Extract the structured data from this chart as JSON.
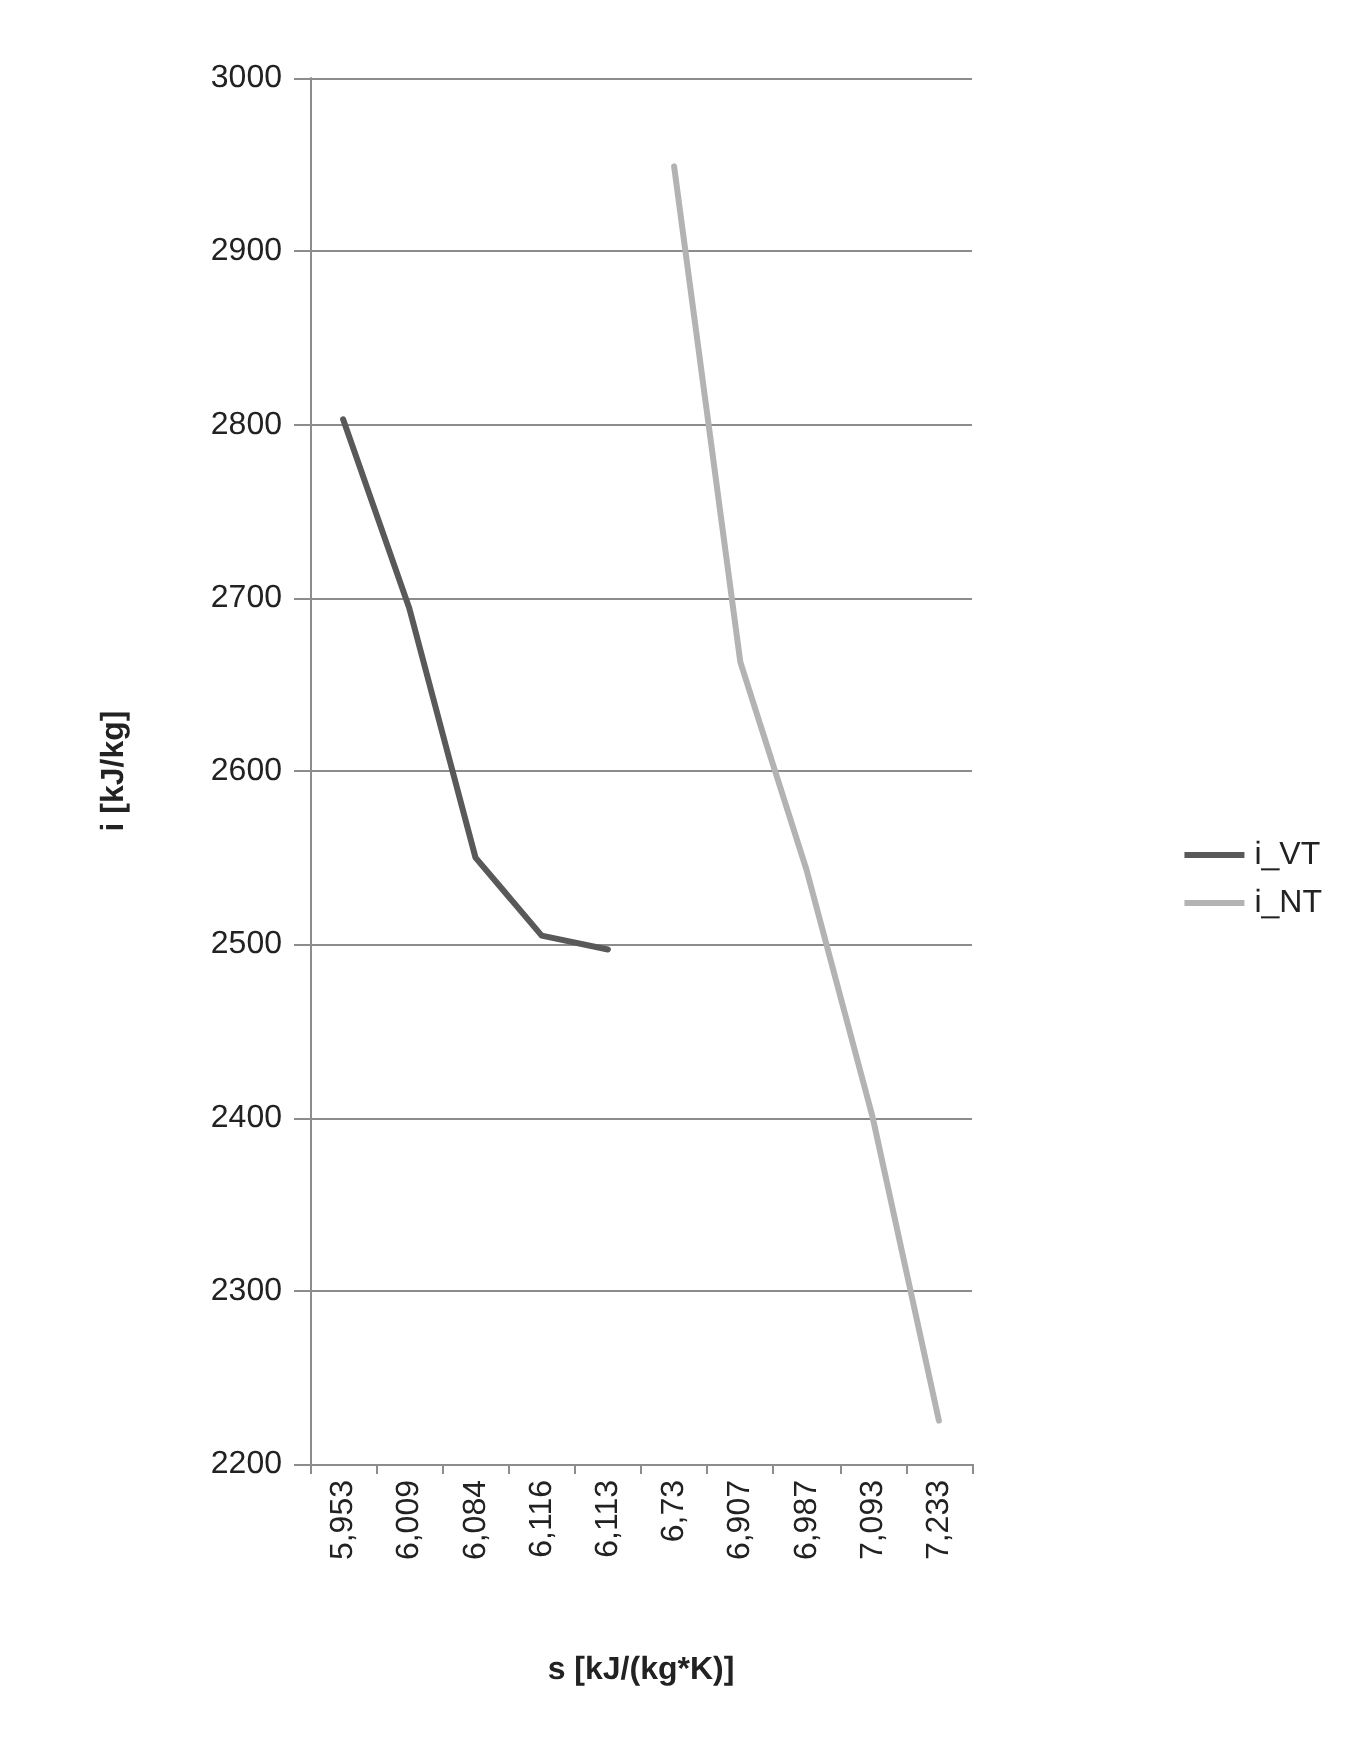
{
  "chart_data": {
    "type": "line",
    "xlabel": "s [kJ/(kg*K)]",
    "ylabel": "i [kJ/kg]",
    "categories": [
      "5,953",
      "6,009",
      "6,084",
      "6,116",
      "6,113",
      "6,73",
      "6,907",
      "6,987",
      "7,093",
      "7,233"
    ],
    "series": [
      {
        "name": "i_VT",
        "color": "#595959",
        "values": [
          2803,
          2694,
          2550,
          2505,
          2497,
          null,
          null,
          null,
          null,
          null
        ]
      },
      {
        "name": "i_NT",
        "color": "#b3b3b3",
        "values": [
          null,
          null,
          null,
          null,
          null,
          2949,
          2663,
          2543,
          2400,
          2225
        ]
      }
    ],
    "ylim": [
      2200,
      3000
    ],
    "yticks": [
      2200,
      2300,
      2400,
      2500,
      2600,
      2700,
      2800,
      2900,
      3000
    ],
    "grid": "y",
    "legend": "right",
    "marker": "none",
    "line_style": "solid"
  }
}
